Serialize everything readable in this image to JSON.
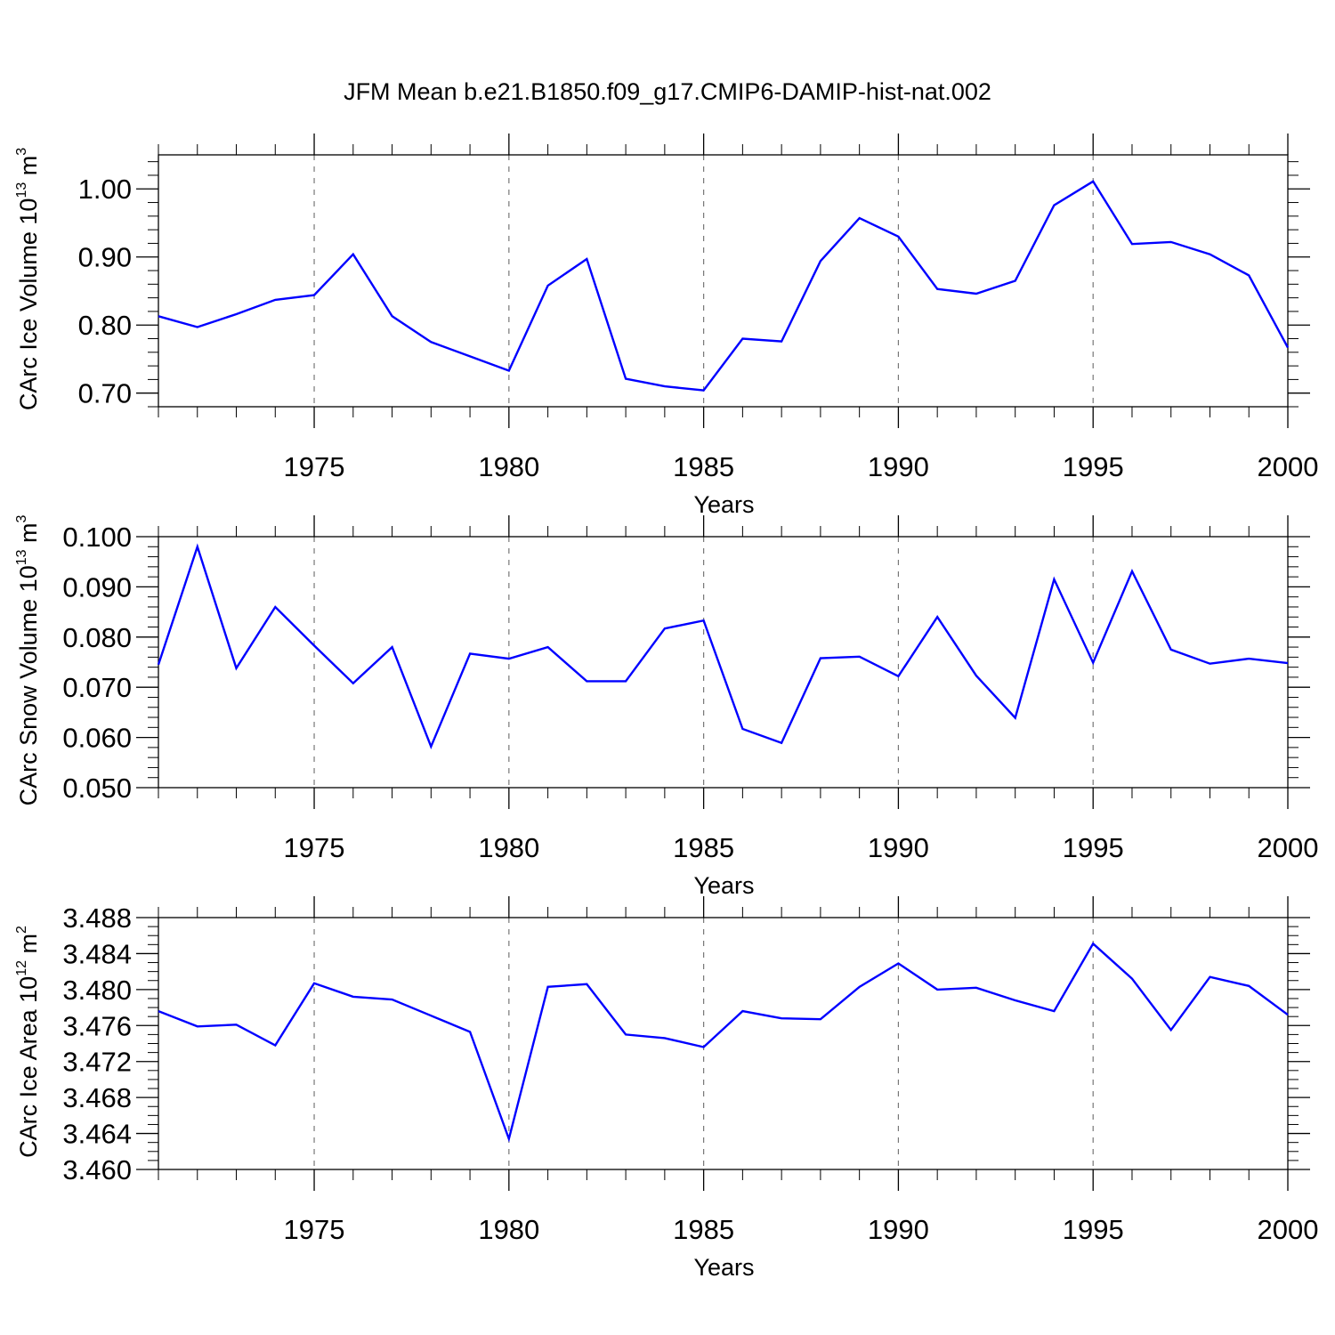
{
  "title": "JFM Mean b.e21.B1850.f09_g17.CMIP6-DAMIP-hist-nat.002",
  "colors": {
    "series": "#0000ff",
    "axis": "#000000",
    "grid": "#777777"
  },
  "chart_data": [
    {
      "type": "line",
      "xlabel": "Years",
      "ylabel_main": "CArc Ice Volume 10",
      "ylabel_exp": "13",
      "ylabel_unit": " m",
      "ylabel_unit_exp": "3",
      "xlim": [
        1971,
        2000
      ],
      "ylim": [
        0.68,
        1.05
      ],
      "x_ticks": [
        "1975",
        "1980",
        "1985",
        "1990",
        "1995",
        "2000"
      ],
      "y_ticks": [
        "0.70",
        "0.80",
        "0.90",
        "1.00"
      ],
      "grid": "vertical-dashed",
      "x": [
        1971,
        1972,
        1973,
        1974,
        1975,
        1976,
        1977,
        1978,
        1979,
        1980,
        1981,
        1982,
        1983,
        1984,
        1985,
        1986,
        1987,
        1988,
        1989,
        1990,
        1991,
        1992,
        1993,
        1994,
        1995,
        1996,
        1997,
        1998,
        1999,
        2000
      ],
      "values": [
        0.813,
        0.797,
        0.816,
        0.837,
        0.844,
        0.904,
        0.813,
        0.775,
        0.754,
        0.733,
        0.858,
        0.897,
        0.721,
        0.71,
        0.704,
        0.78,
        0.776,
        0.894,
        0.957,
        0.93,
        0.853,
        0.846,
        0.865,
        0.976,
        1.011,
        0.919,
        0.922,
        0.904,
        0.873,
        0.767
      ]
    },
    {
      "type": "line",
      "xlabel": "Years",
      "ylabel_main": "CArc Snow Volume 10",
      "ylabel_exp": "13",
      "ylabel_unit": " m",
      "ylabel_unit_exp": "3",
      "xlim": [
        1971,
        2000
      ],
      "ylim": [
        0.05,
        0.1
      ],
      "x_ticks": [
        "1975",
        "1980",
        "1985",
        "1990",
        "1995",
        "2000"
      ],
      "y_ticks": [
        "0.050",
        "0.060",
        "0.070",
        "0.080",
        "0.090",
        "0.100"
      ],
      "grid": "vertical-dashed",
      "x": [
        1971,
        1972,
        1973,
        1974,
        1975,
        1976,
        1977,
        1978,
        1979,
        1980,
        1981,
        1982,
        1983,
        1984,
        1985,
        1986,
        1987,
        1988,
        1989,
        1990,
        1991,
        1992,
        1993,
        1994,
        1995,
        1996,
        1997,
        1998,
        1999,
        2000
      ],
      "values": [
        0.0745,
        0.098,
        0.0738,
        0.086,
        0.0783,
        0.0708,
        0.078,
        0.0582,
        0.0767,
        0.0757,
        0.078,
        0.0712,
        0.0712,
        0.0817,
        0.0833,
        0.0617,
        0.0589,
        0.0758,
        0.0761,
        0.0722,
        0.084,
        0.0723,
        0.0639,
        0.0915,
        0.0749,
        0.0931,
        0.0775,
        0.0747,
        0.0757,
        0.0748
      ]
    },
    {
      "type": "line",
      "xlabel": "Years",
      "ylabel_main": "CArc Ice Area 10",
      "ylabel_exp": "12",
      "ylabel_unit": " m",
      "ylabel_unit_exp": "2",
      "xlim": [
        1971,
        2000
      ],
      "ylim": [
        3.46,
        3.488
      ],
      "x_ticks": [
        "1975",
        "1980",
        "1985",
        "1990",
        "1995",
        "2000"
      ],
      "y_ticks": [
        "3.460",
        "3.464",
        "3.468",
        "3.472",
        "3.476",
        "3.480",
        "3.484",
        "3.488"
      ],
      "grid": "vertical-dashed",
      "x": [
        1971,
        1972,
        1973,
        1974,
        1975,
        1976,
        1977,
        1978,
        1979,
        1980,
        1981,
        1982,
        1983,
        1984,
        1985,
        1986,
        1987,
        1988,
        1989,
        1990,
        1991,
        1992,
        1993,
        1994,
        1995,
        1996,
        1997,
        1998,
        1999,
        2000
      ],
      "values": [
        3.4776,
        3.4759,
        3.4761,
        3.4738,
        3.4807,
        3.4792,
        3.4789,
        3.4771,
        3.4753,
        3.4634,
        3.4803,
        3.4806,
        3.475,
        3.4746,
        3.4736,
        3.4776,
        3.4768,
        3.4767,
        3.4803,
        3.4829,
        3.48,
        3.4802,
        3.4788,
        3.4776,
        3.4851,
        3.4812,
        3.4755,
        3.4814,
        3.4804,
        3.4772
      ]
    }
  ]
}
